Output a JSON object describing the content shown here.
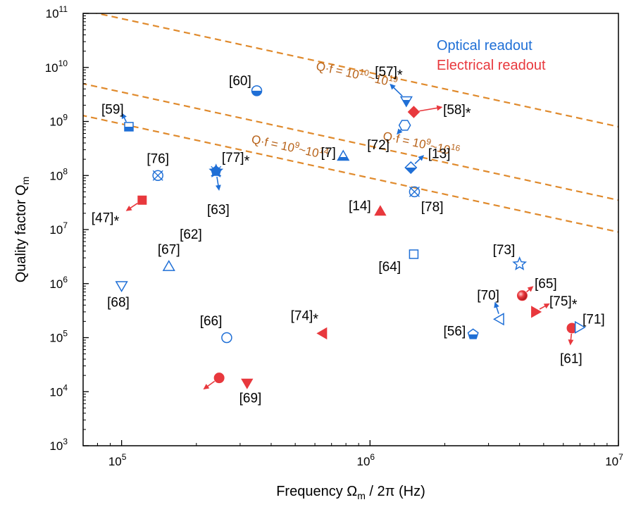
{
  "colors": {
    "optical": "#1f6fd6",
    "electrical": "#e8383d",
    "guide": "#e08a2c",
    "guide_text": "#b8631a"
  },
  "chart_data": {
    "type": "scatter",
    "x_scale": "log",
    "y_scale": "log",
    "xlim": [
      70000,
      10000000
    ],
    "ylim": [
      1000,
      100000000000
    ],
    "xlabel": {
      "pre": "Frequency Ω",
      "sub": "m",
      "post": " / 2π (Hz)"
    },
    "ylabel": {
      "pre": "Quality factor Q",
      "sub": "m"
    },
    "x_ticks": [
      {
        "value": 100000,
        "base": "10",
        "exp": "5"
      },
      {
        "value": 1000000,
        "base": "10",
        "exp": "6"
      },
      {
        "value": 10000000,
        "base": "10",
        "exp": "7"
      }
    ],
    "y_ticks": [
      {
        "value": 1000,
        "base": "10",
        "exp": "3"
      },
      {
        "value": 10000,
        "base": "10",
        "exp": "4"
      },
      {
        "value": 100000,
        "base": "10",
        "exp": "5"
      },
      {
        "value": 1000000,
        "base": "10",
        "exp": "6"
      },
      {
        "value": 10000000,
        "base": "10",
        "exp": "7"
      },
      {
        "value": 100000000,
        "base": "10",
        "exp": "8"
      },
      {
        "value": 1000000000,
        "base": "10",
        "exp": "9"
      },
      {
        "value": 10000000000,
        "base": "10",
        "exp": "10"
      },
      {
        "value": 100000000000,
        "base": "10",
        "exp": "11"
      }
    ],
    "legend": [
      {
        "label": "Optical readout",
        "series": "optical"
      },
      {
        "label": "Electrical readout",
        "series": "electrical"
      }
    ],
    "guide_lines": [
      {
        "qf": 90000000000000.0,
        "label_parts": [
          "Q·f = 10",
          "9",
          "~10",
          "14"
        ]
      },
      {
        "qf": 350000000000000.0,
        "label_parts": [
          "Q·f = 10",
          "9",
          "~10",
          "16"
        ]
      },
      {
        "qf": 8000000000000000.0,
        "label_parts": [
          "Q·f = 10",
          "10",
          "~10",
          "19"
        ]
      }
    ],
    "points": [
      {
        "ref": "[59]",
        "x": 107000,
        "y": 800000000,
        "series": "optical",
        "marker": "square-half"
      },
      {
        "ref": "[60]",
        "x": 350000,
        "y": 3700000000,
        "series": "optical",
        "marker": "circle-half"
      },
      {
        "ref": "[76]",
        "x": 140000,
        "y": 100000000,
        "series": "optical",
        "marker": "triangle-x"
      },
      {
        "ref": "[77]",
        "x": 240000,
        "y": 120000000,
        "series": "optical",
        "marker": "star-x"
      },
      {
        "ref": "[63]",
        "x": 240000,
        "y": 120000000,
        "series": "optical",
        "marker": "pentagon"
      },
      {
        "ref": "[47]",
        "x": 121000,
        "y": 35000000,
        "series": "electrical",
        "marker": "square"
      },
      {
        "ref": "[67]",
        "x": 155000,
        "y": 2000000,
        "series": "optical",
        "marker": "triangle-up-open"
      },
      {
        "ref": "[68]",
        "x": 100000,
        "y": 950000,
        "series": "optical",
        "marker": "triangle-down-open"
      },
      {
        "ref": "[66]",
        "x": 265000,
        "y": 100000,
        "series": "optical",
        "marker": "circle-open"
      },
      {
        "ref": "[62]",
        "x": 247000,
        "y": 18000,
        "series": "electrical",
        "marker": "circle"
      },
      {
        "ref": "[69]",
        "x": 320000,
        "y": 15000,
        "series": "electrical",
        "marker": "triangle-down"
      },
      {
        "ref": "[74]",
        "x": 650000,
        "y": 120000,
        "series": "electrical",
        "marker": "triangle-left"
      },
      {
        "ref": "[7]",
        "x": 780000,
        "y": 220000000,
        "series": "optical",
        "marker": "triangle-up-half"
      },
      {
        "ref": "[14]",
        "x": 1100000,
        "y": 21000000,
        "series": "electrical",
        "marker": "triangle-up"
      },
      {
        "ref": "[57]",
        "x": 1400000,
        "y": 2500000000,
        "series": "optical",
        "marker": "triangle-down-half"
      },
      {
        "ref": "[58]",
        "x": 1500000,
        "y": 1500000000,
        "series": "electrical",
        "marker": "diamond"
      },
      {
        "ref": "[72]",
        "x": 1380000,
        "y": 850000000,
        "series": "optical",
        "marker": "hexagon-open"
      },
      {
        "ref": "[13]",
        "x": 1460000,
        "y": 140000000,
        "series": "optical",
        "marker": "diamond-half"
      },
      {
        "ref": "[78]",
        "x": 1510000,
        "y": 50000000,
        "series": "optical",
        "marker": "circle-x"
      },
      {
        "ref": "[64]",
        "x": 1500000,
        "y": 3500000,
        "series": "optical",
        "marker": "square-open"
      },
      {
        "ref": "[56]",
        "x": 2600000,
        "y": 115000,
        "series": "optical",
        "marker": "pentagon-half"
      },
      {
        "ref": "[73]",
        "x": 4000000,
        "y": 2300000,
        "series": "optical",
        "marker": "star-open"
      },
      {
        "ref": "[65]",
        "x": 4100000,
        "y": 600000,
        "series": "electrical",
        "marker": "sphere"
      },
      {
        "ref": "[70]",
        "x": 3350000,
        "y": 220000,
        "series": "optical",
        "marker": "triangle-left-open"
      },
      {
        "ref": "[75]",
        "x": 4600000,
        "y": 300000,
        "series": "electrical",
        "marker": "triangle-right"
      },
      {
        "ref": "[61]",
        "x": 6500000,
        "y": 150000,
        "series": "electrical",
        "marker": "circle"
      },
      {
        "ref": "[71]",
        "x": 6900000,
        "y": 155000,
        "series": "optical",
        "marker": "triangle-right-open"
      }
    ],
    "star_mark": "*",
    "starred_refs": [
      "[57]",
      "[58]",
      "[77]",
      "[47]",
      "[74]",
      "[75]"
    ],
    "arrows": [
      {
        "series": "optical",
        "from": [
          107000,
          800000000
        ],
        "to": [
          100000,
          1450000000
        ]
      },
      {
        "series": "optical",
        "from": [
          240000,
          120000000
        ],
        "to": [
          247000,
          52000000
        ]
      },
      {
        "series": "electrical",
        "from": [
          121000,
          35000000
        ],
        "to": [
          104000,
          22000000
        ]
      },
      {
        "series": "optical",
        "from": [
          1400000,
          2500000000
        ],
        "to": [
          1200000,
          5000000000
        ]
      },
      {
        "series": "electrical",
        "from": [
          1500000,
          1500000000
        ],
        "to": [
          1960000,
          1850000000
        ]
      },
      {
        "series": "optical",
        "from": [
          1380000,
          850000000
        ],
        "to": [
          1280000,
          570000000
        ]
      },
      {
        "series": "optical",
        "from": [
          1460000,
          140000000
        ],
        "to": [
          1650000,
          240000000
        ]
      },
      {
        "series": "electrical",
        "from": [
          247000,
          18000
        ],
        "to": [
          213000,
          11000
        ]
      },
      {
        "series": "optical",
        "from": [
          3350000,
          220000
        ],
        "to": [
          3180000,
          460000
        ]
      },
      {
        "series": "electrical",
        "from": [
          4100000,
          600000
        ],
        "to": [
          4550000,
          900000
        ]
      },
      {
        "series": "electrical",
        "from": [
          4600000,
          300000
        ],
        "to": [
          5300000,
          430000
        ]
      },
      {
        "series": "electrical",
        "from": [
          6500000,
          150000
        ],
        "to": [
          6400000,
          72000
        ]
      }
    ],
    "labels": [
      {
        "ref": "[59]",
        "x": 92000,
        "y": 1720000000
      },
      {
        "ref": "[60]",
        "x": 300000,
        "y": 5800000000
      },
      {
        "ref": "[76]",
        "x": 140000,
        "y": 210000000
      },
      {
        "ref": "[77]",
        "x": 288000,
        "y": 220000000
      },
      {
        "ref": "[63]",
        "x": 245000,
        "y": 24000000
      },
      {
        "ref": "[47]",
        "x": 86000,
        "y": 17000000
      },
      {
        "ref": "[67]",
        "x": 155000,
        "y": 4400000
      },
      {
        "ref": "[68]",
        "x": 97000,
        "y": 460000
      },
      {
        "ref": "[66]",
        "x": 229000,
        "y": 210000
      },
      {
        "ref": "[62]",
        "x": 190000,
        "y": 8300000
      },
      {
        "ref": "[69]",
        "x": 330000,
        "y": 7800
      },
      {
        "ref": "[74]",
        "x": 545000,
        "y": 260000
      },
      {
        "ref": "[7]",
        "x": 680000,
        "y": 270000000
      },
      {
        "ref": "[14]",
        "x": 910000,
        "y": 28000000
      },
      {
        "ref": "[57]",
        "x": 1190000,
        "y": 8500000000
      },
      {
        "ref": "[58]",
        "x": 2240000,
        "y": 1700000000
      },
      {
        "ref": "[72]",
        "x": 1080000,
        "y": 380000000
      },
      {
        "ref": "[13]",
        "x": 1900000,
        "y": 260000000
      },
      {
        "ref": "[78]",
        "x": 1780000,
        "y": 27000000
      },
      {
        "ref": "[64]",
        "x": 1200000,
        "y": 2100000
      },
      {
        "ref": "[56]",
        "x": 2190000,
        "y": 135000
      },
      {
        "ref": "[73]",
        "x": 3460000,
        "y": 4300000
      },
      {
        "ref": "[65]",
        "x": 5100000,
        "y": 1020000
      },
      {
        "ref": "[70]",
        "x": 2990000,
        "y": 620000
      },
      {
        "ref": "[75]",
        "x": 6000000,
        "y": 480000
      },
      {
        "ref": "[71]",
        "x": 7950000,
        "y": 225000
      },
      {
        "ref": "[61]",
        "x": 6450000,
        "y": 42000
      }
    ]
  }
}
